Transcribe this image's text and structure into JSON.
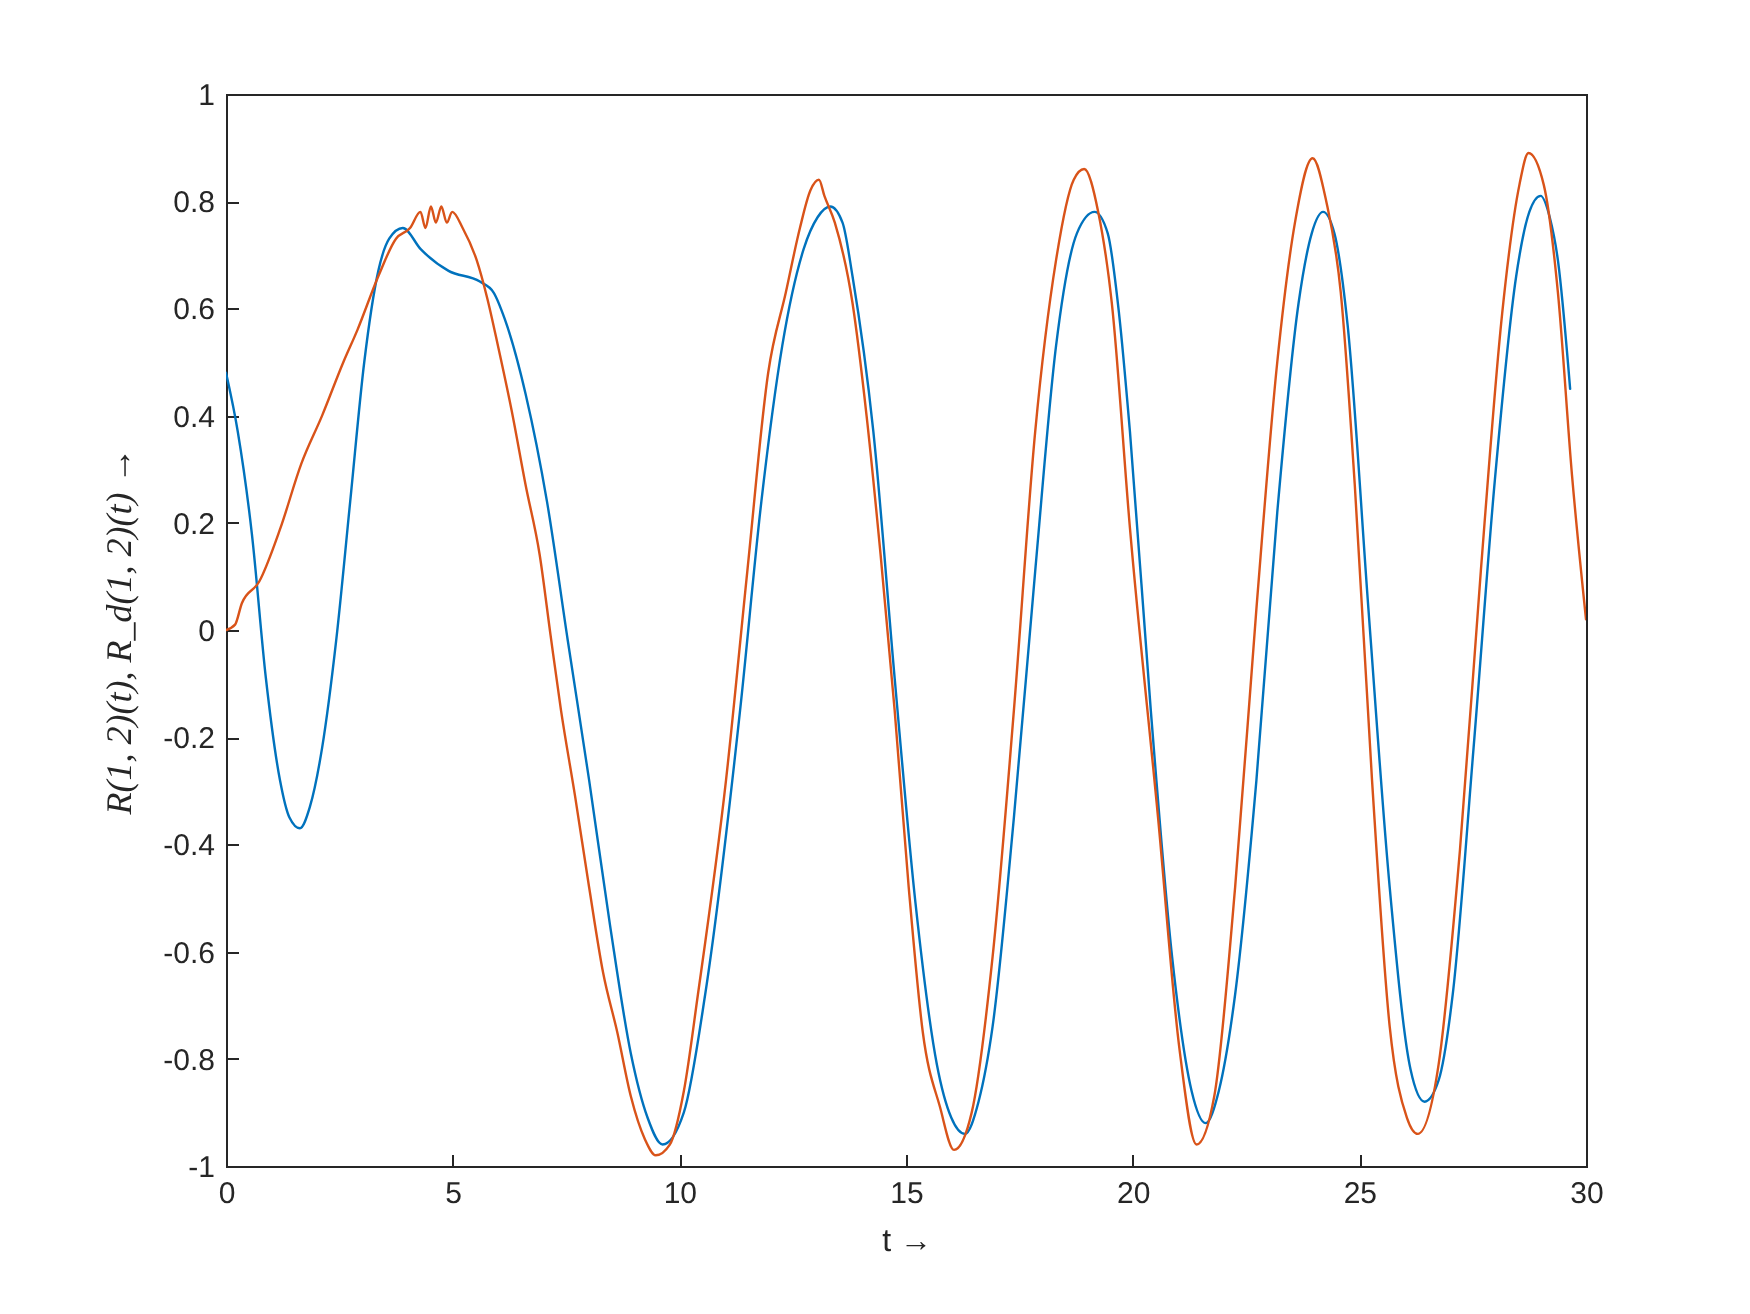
{
  "chart_data": {
    "type": "line",
    "xlabel": "t →",
    "ylabel": "R(1, 2)(t), R_d(1, 2)(t) →",
    "xlim": [
      0,
      30
    ],
    "ylim": [
      -1,
      1
    ],
    "xticks": [
      0,
      5,
      10,
      15,
      20,
      25,
      30
    ],
    "yticks": [
      -1,
      -0.8,
      -0.6,
      -0.4,
      -0.2,
      0,
      0.2,
      0.4,
      0.6,
      0.8,
      1
    ],
    "grid": false,
    "series": [
      {
        "color": "#0072bd",
        "x": [
          0,
          0.26,
          0.57,
          0.88,
          1.19,
          1.4,
          1.63,
          1.85,
          2.12,
          2.43,
          2.74,
          3.05,
          3.36,
          3.6,
          3.9,
          4.3,
          4.91,
          5.6,
          5.9,
          6.15,
          6.61,
          7.08,
          7.54,
          8.01,
          8.47,
          8.93,
          9.3,
          9.63,
          10.1,
          10.57,
          11.34,
          11.81,
          12.27,
          12.74,
          13.05,
          13.33,
          13.6,
          13.82,
          14.28,
          14.75,
          15.21,
          15.68,
          16.0,
          16.3,
          16.6,
          16.91,
          17.38,
          17.85,
          18.31,
          18.77,
          19.16,
          19.45,
          19.7,
          19.94,
          20.4,
          20.87,
          21.3,
          21.61,
          21.9,
          22.26,
          22.73,
          23.19,
          23.66,
          23.95,
          24.2,
          24.45,
          24.74,
          25.2,
          25.67,
          26.13,
          26.44,
          26.75,
          27.06,
          27.52,
          27.99,
          28.46,
          28.75,
          29.0,
          29.2,
          29.38,
          29.65
        ],
        "values": [
          0.48,
          0.37,
          0.18,
          -0.09,
          -0.28,
          -0.35,
          -0.37,
          -0.33,
          -0.22,
          -0.02,
          0.24,
          0.5,
          0.67,
          0.73,
          0.75,
          0.71,
          0.67,
          0.65,
          0.63,
          0.58,
          0.44,
          0.24,
          -0.02,
          -0.28,
          -0.55,
          -0.79,
          -0.91,
          -0.96,
          -0.9,
          -0.68,
          -0.15,
          0.24,
          0.53,
          0.71,
          0.77,
          0.79,
          0.76,
          0.66,
          0.37,
          -0.09,
          -0.51,
          -0.81,
          -0.91,
          -0.94,
          -0.88,
          -0.74,
          -0.35,
          0.11,
          0.53,
          0.74,
          0.78,
          0.74,
          0.59,
          0.37,
          -0.15,
          -0.61,
          -0.86,
          -0.92,
          -0.86,
          -0.68,
          -0.28,
          0.22,
          0.61,
          0.74,
          0.78,
          0.74,
          0.57,
          0.04,
          -0.48,
          -0.82,
          -0.88,
          -0.84,
          -0.68,
          -0.22,
          0.28,
          0.66,
          0.78,
          0.81,
          0.77,
          0.69,
          0.45
        ]
      },
      {
        "color": "#d95319",
        "x": [
          0,
          0.2,
          0.35,
          0.73,
          1.2,
          1.66,
          2.12,
          2.59,
          2.9,
          3.36,
          3.75,
          4.06,
          4.29,
          4.4,
          4.52,
          4.63,
          4.75,
          4.87,
          4.99,
          5.22,
          5.53,
          5.76,
          6.0,
          6.3,
          6.61,
          6.92,
          7.16,
          7.39,
          7.7,
          8.01,
          8.32,
          8.63,
          8.93,
          9.24,
          9.48,
          9.79,
          10.1,
          10.41,
          11.03,
          11.5,
          11.96,
          12.35,
          12.66,
          12.89,
          13.08,
          13.2,
          13.43,
          13.82,
          14.13,
          14.44,
          14.75,
          15.06,
          15.37,
          15.75,
          16.06,
          16.45,
          16.91,
          17.38,
          17.85,
          18.31,
          18.7,
          18.93,
          19.24,
          19.54,
          19.94,
          20.56,
          21.03,
          21.41,
          21.8,
          22.26,
          22.73,
          23.19,
          23.58,
          23.97,
          24.27,
          24.59,
          24.9,
          25.28,
          25.67,
          26.05,
          26.29,
          26.75,
          27.22,
          27.68,
          28.15,
          28.53,
          28.73,
          29.07,
          29.38,
          29.69,
          30
        ],
        "values": [
          0,
          0.01,
          0.05,
          0.09,
          0.19,
          0.31,
          0.4,
          0.5,
          0.56,
          0.66,
          0.73,
          0.75,
          0.78,
          0.75,
          0.79,
          0.76,
          0.79,
          0.76,
          0.78,
          0.75,
          0.69,
          0.62,
          0.53,
          0.41,
          0.27,
          0.14,
          -0.01,
          -0.15,
          -0.31,
          -0.48,
          -0.64,
          -0.75,
          -0.87,
          -0.95,
          -0.98,
          -0.96,
          -0.86,
          -0.68,
          -0.28,
          0.11,
          0.48,
          0.63,
          0.75,
          0.82,
          0.84,
          0.81,
          0.76,
          0.61,
          0.4,
          0.14,
          -0.15,
          -0.48,
          -0.75,
          -0.89,
          -0.97,
          -0.9,
          -0.61,
          -0.15,
          0.37,
          0.69,
          0.84,
          0.86,
          0.78,
          0.61,
          0.19,
          -0.35,
          -0.78,
          -0.96,
          -0.87,
          -0.48,
          0.04,
          0.5,
          0.76,
          0.88,
          0.8,
          0.63,
          0.27,
          -0.28,
          -0.74,
          -0.91,
          -0.94,
          -0.81,
          -0.41,
          0.11,
          0.59,
          0.83,
          0.89,
          0.83,
          0.63,
          0.29,
          0.02
        ]
      }
    ]
  }
}
